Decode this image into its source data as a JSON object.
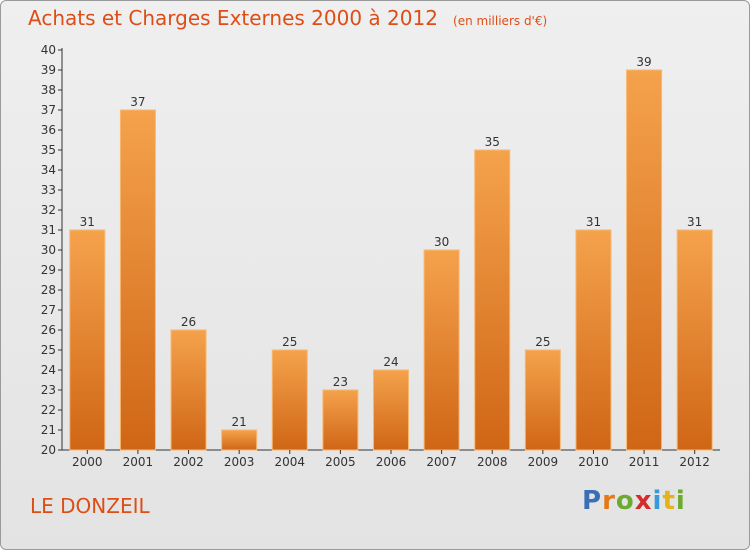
{
  "header": {
    "title": "Achats et Charges Externes 2000 à 2012",
    "unit": "(en milliers d'€)"
  },
  "footer": {
    "commune": "LE DONZEIL",
    "logo": "Proxiti"
  },
  "colors": {
    "bar_light": "#f5a24c",
    "bar_dark": "#cf6616",
    "text_accent": "#dd4e17"
  },
  "chart_data": {
    "type": "bar",
    "categories": [
      "2000",
      "2001",
      "2002",
      "2003",
      "2004",
      "2005",
      "2006",
      "2007",
      "2008",
      "2009",
      "2010",
      "2011",
      "2012"
    ],
    "values": [
      31,
      37,
      26,
      21,
      25,
      23,
      24,
      30,
      35,
      25,
      31,
      39,
      31
    ],
    "ylim": [
      20,
      40
    ],
    "yticks": [
      20,
      21,
      22,
      23,
      24,
      25,
      26,
      27,
      28,
      29,
      30,
      31,
      32,
      33,
      34,
      35,
      36,
      37,
      38,
      39,
      40
    ],
    "grid": false,
    "title": "Achats et Charges Externes 2000 à 2012",
    "ylabel": "",
    "xlabel": ""
  }
}
